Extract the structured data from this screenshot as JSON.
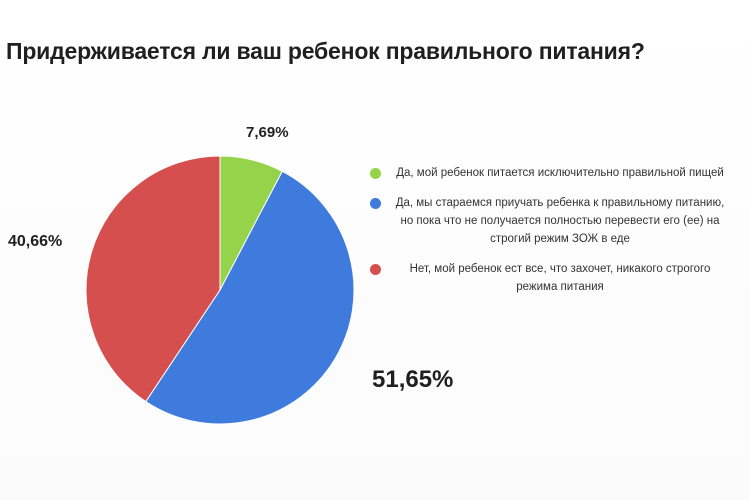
{
  "chart_data": {
    "type": "pie",
    "title": "Придерживается ли ваш ребенок правильного питания?",
    "values": [
      7.69,
      51.65,
      40.66
    ],
    "labels": [
      "7,69%",
      "51,65%",
      "40,66%"
    ],
    "legend": [
      {
        "text": "Да, мой ребенок питается исключительно правильной пищей",
        "color": "#95d34a"
      },
      {
        "text": "Да, мы стараемся приучать ребенка к правильному питанию, но пока что не получается полностью перевести его (ее) на строгий режим ЗОЖ в еде",
        "color": "#3f7bdc"
      },
      {
        "text": "Нет, мой ребенок ест все, что захочет, никакого строгого режима питания",
        "color": "#d54f4f"
      }
    ],
    "colors": [
      "#95d34a",
      "#3f7bdc",
      "#d54f4f"
    ],
    "legend_placement": "right"
  }
}
